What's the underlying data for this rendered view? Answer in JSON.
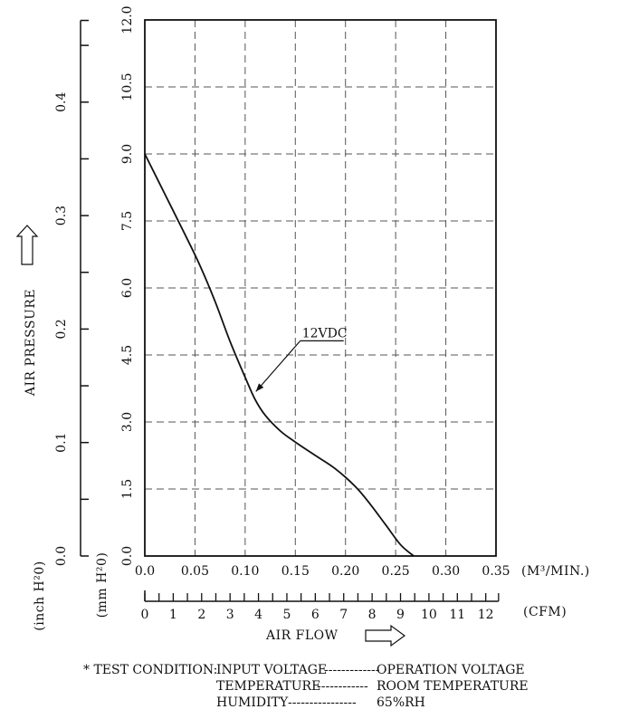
{
  "chart_data": {
    "type": "line",
    "ylabel": "AIR PRESSURE",
    "xlabel": "AIR FLOW",
    "x_unit_primary": "(M³/MIN.)",
    "x_unit_secondary": "(CFM)",
    "y_unit_left": "(inch H²0)",
    "y_unit_right": "(mm H²0)",
    "xlim": [
      0,
      0.35
    ],
    "ylim": [
      0,
      12
    ],
    "x_ticks": [
      "0.0",
      "0.05",
      "0.10",
      "0.15",
      "0.20",
      "0.25",
      "0.30",
      "0.35"
    ],
    "y_ticks_mm": [
      "0.0",
      "1.5",
      "3.0",
      "4.5",
      "6.0",
      "7.5",
      "9.0",
      "10.5",
      "12.0"
    ],
    "y_ticks_inch": [
      "0.0",
      "0.1",
      "0.2",
      "0.3",
      "0.4"
    ],
    "cfm_ticks": [
      "0",
      "1",
      "2",
      "3",
      "4",
      "5",
      "6",
      "7",
      "8",
      "9",
      "10",
      "11",
      "12"
    ],
    "grid": true,
    "series": [
      {
        "name": "12VDC",
        "x": [
          0.0,
          0.02,
          0.04,
          0.055,
          0.07,
          0.085,
          0.1,
          0.11,
          0.12,
          0.135,
          0.15,
          0.17,
          0.19,
          0.21,
          0.225,
          0.24,
          0.255,
          0.268
        ],
        "y": [
          9.0,
          8.1,
          7.2,
          6.5,
          5.7,
          4.8,
          4.0,
          3.5,
          3.15,
          2.8,
          2.55,
          2.25,
          1.95,
          1.55,
          1.15,
          0.7,
          0.25,
          0.0
        ]
      }
    ],
    "annotation": {
      "text": "12VDC",
      "x": 0.108,
      "y": 3.6
    }
  },
  "test_condition": {
    "title": "* TEST CONDITION:",
    "rows": [
      {
        "key": "INPUT VOLTAGE",
        "dashes": "-------------",
        "value": "OPERATION VOLTAGE"
      },
      {
        "key": "TEMPERATURE",
        "dashes": "------------",
        "value": "ROOM TEMPERATURE"
      },
      {
        "key": "HUMIDITY",
        "dashes": "----------------",
        "value": "65%RH"
      }
    ]
  }
}
